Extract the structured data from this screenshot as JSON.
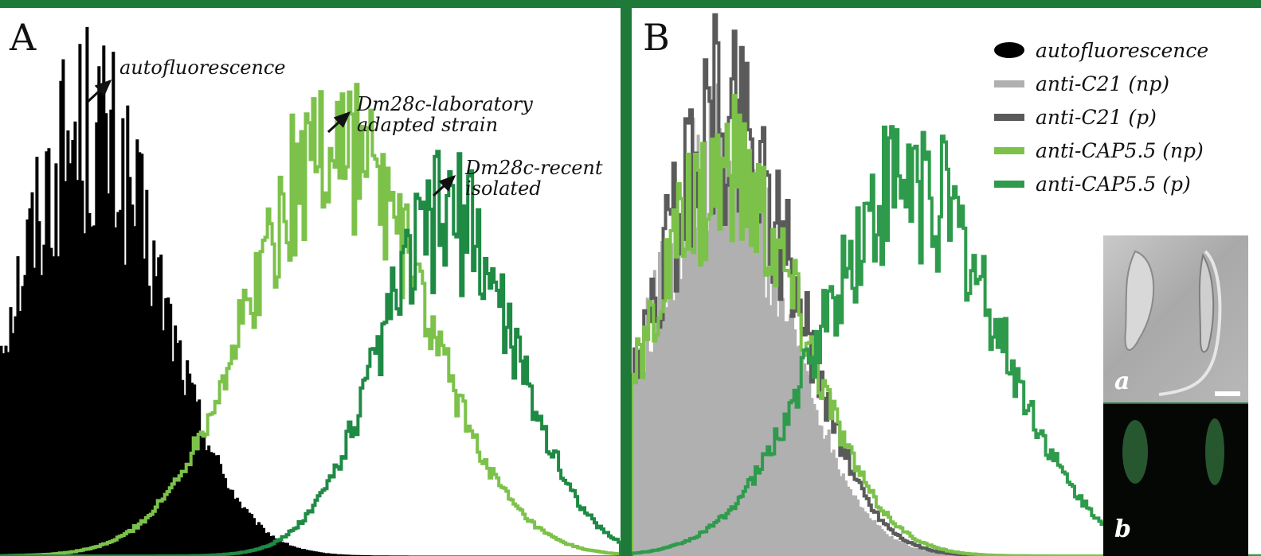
{
  "colors": {
    "frame": "#1f7a3a",
    "autofluorescence": "#000000",
    "light_green": "#7cc24a",
    "dark_green": "#1e8a44",
    "light_gray": "#b0b0b0",
    "dark_gray": "#5a5a5a"
  },
  "panel_a": {
    "letter": "A",
    "annotations": {
      "autofluorescence": "autofluorescence",
      "lab_strain": "Dm28c-laboratory\nadapted strain",
      "recent_isolate": "Dm28c-recent\nisolated"
    }
  },
  "panel_b": {
    "letter": "B",
    "legend": [
      {
        "label": "autofluorescence",
        "color": "#000000",
        "shape": "ellipse"
      },
      {
        "label": "anti-C21 (np)",
        "color": "#b0b0b0",
        "shape": "bar"
      },
      {
        "label": "anti-C21 (p)",
        "color": "#5a5a5a",
        "shape": "bar"
      },
      {
        "label": "anti-CAP5.5 (np)",
        "color": "#7cc24a",
        "shape": "bar"
      },
      {
        "label": "anti-CAP5.5 (p)",
        "color": "#2e9b4c",
        "shape": "bar"
      }
    ],
    "micrographs": {
      "a_label": "a",
      "b_label": "b"
    }
  },
  "chart_data": [
    {
      "type": "area",
      "grid": false,
      "title": "",
      "xlabel": "",
      "ylabel": "",
      "xlim": [
        0,
        100
      ],
      "ylim": [
        0,
        1
      ],
      "series": [
        {
          "name": "autofluorescence",
          "color": "#000000",
          "filled": true,
          "center": 14,
          "width": 12,
          "peak": 0.78,
          "noise": 0.12
        },
        {
          "name": "Dm28c-laboratory adapted strain",
          "color": "#7cc24a",
          "filled": false,
          "center": 54,
          "width": 14,
          "peak": 0.76,
          "noise": 0.1
        },
        {
          "name": "Dm28c-recent isolated",
          "color": "#1e8a44",
          "filled": false,
          "center": 72,
          "width": 11,
          "peak": 0.62,
          "noise": 0.1
        }
      ]
    },
    {
      "type": "area",
      "grid": false,
      "title": "",
      "xlabel": "",
      "ylabel": "",
      "xlim": [
        0,
        100
      ],
      "ylim": [
        0,
        1
      ],
      "series": [
        {
          "name": "autofluorescence",
          "color": "#000000",
          "filled": true,
          "center": 13,
          "width": 9,
          "peak": 0.5,
          "noise": 0.06
        },
        {
          "name": "anti-C21 (np)",
          "color": "#b0b0b0",
          "filled": true,
          "center": 14,
          "width": 11,
          "peak": 0.72,
          "noise": 0.1
        },
        {
          "name": "anti-C21 (p)",
          "color": "#5a5a5a",
          "filled": false,
          "center": 15,
          "width": 11,
          "peak": 0.8,
          "noise": 0.12
        },
        {
          "name": "anti-CAP5.5 (np)",
          "color": "#7cc24a",
          "filled": false,
          "center": 15,
          "width": 12,
          "peak": 0.7,
          "noise": 0.1
        },
        {
          "name": "anti-CAP5.5 (p)",
          "color": "#2e9b4c",
          "filled": false,
          "center": 44,
          "width": 14,
          "peak": 0.68,
          "noise": 0.1
        }
      ]
    }
  ]
}
